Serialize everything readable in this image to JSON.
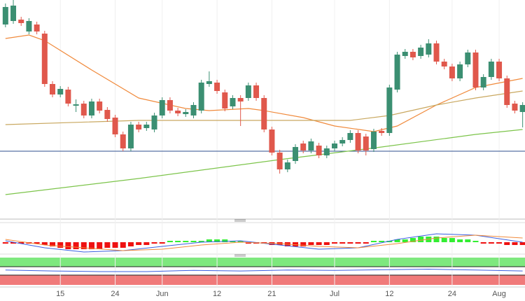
{
  "chart_data": [
    {
      "type": "candlestick",
      "categories": [
        null,
        null,
        null,
        null,
        null,
        null,
        null,
        "15",
        null,
        null,
        null,
        null,
        null,
        null,
        "24",
        null,
        null,
        null,
        null,
        null,
        "Jun",
        null,
        null,
        null,
        null,
        null,
        null,
        "12",
        null,
        null,
        null,
        null,
        null,
        null,
        "21",
        null,
        null,
        null,
        null,
        null,
        null,
        null,
        "Jul",
        null,
        null,
        null,
        null,
        null,
        null,
        "12",
        null,
        null,
        null,
        null,
        null,
        null,
        null,
        "24",
        null,
        null,
        null,
        null,
        null,
        "Aug",
        null,
        null,
        null
      ],
      "open": [
        275,
        280,
        282,
        265,
        275,
        262,
        190,
        175,
        182,
        159,
        162,
        145,
        165,
        153,
        142,
        118,
        98,
        132,
        127,
        125,
        145,
        167,
        152,
        147,
        145,
        152,
        190,
        192,
        178,
        158,
        170,
        170,
        188,
        170,
        125,
        92,
        68,
        80,
        105,
        95,
        102,
        88,
        98,
        105,
        110,
        120,
        115,
        97,
        123,
        120,
        182,
        230,
        236,
        230,
        232,
        248,
        222,
        215,
        198,
        218,
        235,
        185,
        200,
        222,
        198,
        162,
        150
      ],
      "high": [
        305,
        310,
        286,
        284,
        279,
        266,
        194,
        187,
        186,
        168,
        166,
        169,
        169,
        157,
        146,
        122,
        136,
        136,
        136,
        149,
        171,
        171,
        156,
        154,
        164,
        196,
        208,
        196,
        182,
        174,
        174,
        192,
        192,
        174,
        129,
        96,
        82,
        104,
        109,
        112,
        106,
        102,
        109,
        114,
        124,
        124,
        119,
        126,
        127,
        189,
        236,
        240,
        240,
        246,
        254,
        252,
        226,
        219,
        222,
        239,
        239,
        204,
        226,
        226,
        202,
        166,
        164
      ],
      "low": [
        271,
        276,
        273,
        261,
        261,
        186,
        171,
        171,
        158,
        150,
        141,
        141,
        148,
        136,
        114,
        94,
        94,
        121,
        123,
        121,
        141,
        148,
        144,
        143,
        141,
        148,
        186,
        176,
        151,
        154,
        130,
        166,
        166,
        121,
        88,
        62,
        64,
        76,
        91,
        91,
        84,
        84,
        94,
        101,
        106,
        91,
        88,
        93,
        116,
        116,
        178,
        226,
        224,
        226,
        228,
        218,
        211,
        194,
        194,
        214,
        181,
        181,
        196,
        194,
        156,
        148,
        128
      ],
      "close": [
        300,
        302,
        277,
        280,
        265,
        190,
        175,
        183,
        162,
        161,
        145,
        165,
        152,
        140,
        118,
        98,
        132,
        125,
        132,
        145,
        167,
        152,
        148,
        150,
        160,
        192,
        194,
        180,
        155,
        170,
        165,
        188,
        170,
        125,
        92,
        68,
        78,
        100,
        95,
        108,
        88,
        98,
        105,
        110,
        120,
        95,
        95,
        122,
        120,
        185,
        232,
        236,
        228,
        242,
        248,
        222,
        215,
        198,
        218,
        235,
        185,
        200,
        222,
        198,
        160,
        152,
        160
      ],
      "up_color": "#3b8f72",
      "down_color": "#e0584c",
      "xlim": [
        -0.7,
        66.3
      ],
      "ylim": [
        0,
        310
      ],
      "moving_averages": [
        {
          "color": "#f08a3c",
          "x": [
            0,
            3,
            5,
            11,
            17,
            23,
            26,
            31,
            33,
            38,
            42,
            47,
            50,
            55,
            60,
            66
          ],
          "values": [
            255,
            260,
            252,
            210,
            170,
            155,
            152,
            155,
            152,
            142,
            130,
            122,
            130,
            160,
            185,
            198
          ]
        },
        {
          "color": "#c9a860",
          "x": [
            0,
            17,
            33,
            44,
            49,
            55,
            60,
            66
          ],
          "values": [
            132,
            138,
            138,
            138,
            145,
            160,
            170,
            180
          ]
        },
        {
          "color": "#7cc44a",
          "x": [
            0,
            17,
            35,
            48,
            60,
            66
          ],
          "values": [
            32,
            55,
            82,
            100,
            118,
            125
          ]
        }
      ],
      "hline": {
        "value": 94,
        "color": "#2f4f8f"
      }
    },
    {
      "type": "macd",
      "values": [
        -1,
        -1,
        -1,
        -1,
        -1,
        -2,
        -3,
        -4,
        -5,
        -5,
        -5,
        -5,
        -5,
        -4,
        -4,
        -4,
        -3,
        -2,
        -2,
        -1,
        -1,
        1,
        1,
        1,
        1,
        1,
        2,
        2,
        2,
        1,
        1,
        -1,
        -1,
        -1,
        -2,
        -2,
        -3,
        -3,
        -3,
        -2,
        -2,
        -2,
        -1,
        -1,
        -1,
        -1,
        -1,
        1,
        1,
        1,
        2,
        2,
        3,
        4,
        4,
        4,
        3,
        3,
        2,
        2,
        1,
        -1,
        -1,
        -1,
        -2,
        -2,
        -2
      ],
      "positive_color": "#33ee33",
      "negative_color": "#ee1111",
      "ylim": [
        -8,
        12
      ],
      "series": [
        {
          "color": "#3a5fe0",
          "x": [
            0,
            5,
            10,
            15,
            20,
            25,
            30,
            35,
            40,
            45,
            50,
            55,
            60,
            66
          ],
          "values": [
            1,
            -4,
            -7,
            -6,
            -3,
            0,
            1,
            -2,
            -5,
            -4,
            2,
            6,
            5,
            0
          ]
        },
        {
          "color": "#f08a3c",
          "x": [
            0,
            5,
            10,
            15,
            20,
            25,
            30,
            35,
            40,
            45,
            50,
            55,
            60,
            66
          ],
          "values": [
            2,
            -2,
            -4,
            -6,
            -5,
            -2,
            0,
            -1,
            -3,
            -4,
            -1,
            3,
            5,
            3
          ]
        }
      ]
    },
    {
      "type": "line",
      "ylim": [
        0,
        100
      ],
      "series": [
        {
          "color": "#3a5fe0",
          "x": [
            0,
            6,
            12,
            18,
            24,
            30,
            36,
            42,
            48,
            54,
            60,
            66
          ],
          "values": [
            55,
            52,
            50,
            50,
            54,
            52,
            55,
            54,
            56,
            58,
            55,
            52
          ]
        }
      ]
    }
  ]
}
